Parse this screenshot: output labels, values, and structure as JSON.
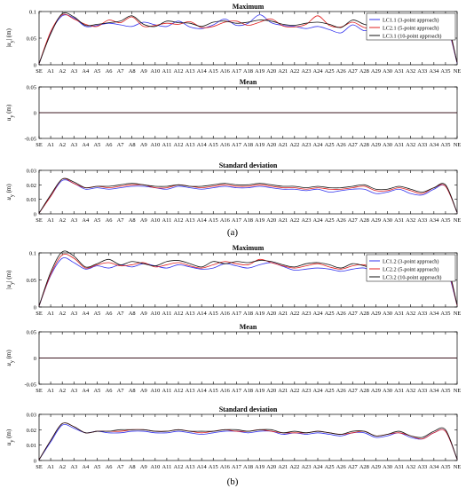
{
  "figure": {
    "panel_a_caption": "(a)",
    "panel_b_caption": "(b)",
    "series_colors": [
      "#3333ee",
      "#e02020",
      "#111111"
    ]
  },
  "chart_data": [
    {
      "type": "line",
      "panel": "a",
      "title": "Maximum",
      "ylabel": "|u_y| (m)",
      "categories": [
        "SE",
        "A1",
        "A2",
        "A3",
        "A4",
        "A5",
        "A6",
        "A7",
        "A8",
        "A9",
        "A10",
        "A11",
        "A12",
        "A13",
        "A14",
        "A15",
        "A16",
        "A17",
        "A18",
        "A19",
        "A20",
        "A21",
        "A22",
        "A23",
        "A24",
        "A25",
        "A26",
        "A27",
        "A28",
        "A29",
        "A30",
        "A31",
        "A32",
        "A33",
        "A34",
        "A35",
        "NE"
      ],
      "ylim": [
        0,
        0.1
      ],
      "yticks": [
        "0",
        "0.05",
        "0.1"
      ],
      "grid": false,
      "legend": "top-right",
      "series": [
        {
          "name": "LC1.1 (3-point approach)",
          "color": "#3333ee",
          "values": [
            0.002,
            0.06,
            0.092,
            0.088,
            0.072,
            0.074,
            0.078,
            0.075,
            0.072,
            0.08,
            0.075,
            0.072,
            0.082,
            0.071,
            0.068,
            0.075,
            0.086,
            0.074,
            0.078,
            0.094,
            0.079,
            0.074,
            0.072,
            0.068,
            0.072,
            0.066,
            0.06,
            0.075,
            0.064,
            0.07,
            0.075,
            0.066,
            0.072,
            0.061,
            0.072,
            0.08,
            0.003
          ]
        },
        {
          "name": "LC2.1 (5-point approach)",
          "color": "#e02020",
          "values": [
            0.002,
            0.062,
            0.094,
            0.086,
            0.076,
            0.072,
            0.084,
            0.079,
            0.09,
            0.072,
            0.074,
            0.078,
            0.076,
            0.081,
            0.07,
            0.072,
            0.08,
            0.082,
            0.074,
            0.08,
            0.086,
            0.073,
            0.071,
            0.076,
            0.092,
            0.074,
            0.071,
            0.08,
            0.07,
            0.068,
            0.082,
            0.068,
            0.074,
            0.066,
            0.078,
            0.084,
            0.004
          ]
        },
        {
          "name": "LC3.1 (10-point approach)",
          "color": "#111111",
          "values": [
            0.002,
            0.058,
            0.096,
            0.09,
            0.074,
            0.076,
            0.079,
            0.082,
            0.092,
            0.076,
            0.072,
            0.082,
            0.079,
            0.078,
            0.072,
            0.08,
            0.082,
            0.078,
            0.08,
            0.084,
            0.082,
            0.076,
            0.074,
            0.078,
            0.08,
            0.076,
            0.07,
            0.084,
            0.076,
            0.072,
            0.08,
            0.072,
            0.07,
            0.07,
            0.082,
            0.09,
            0.004
          ]
        }
      ]
    },
    {
      "type": "line",
      "panel": "a",
      "title": "Mean",
      "ylabel": "u_y (m)",
      "categories": [
        "SE",
        "A1",
        "A2",
        "A3",
        "A4",
        "A5",
        "A6",
        "A7",
        "A8",
        "A9",
        "A10",
        "A11",
        "A12",
        "A13",
        "A14",
        "A15",
        "A16",
        "A17",
        "A18",
        "A19",
        "A20",
        "A21",
        "A22",
        "A23",
        "A24",
        "A25",
        "A26",
        "A27",
        "A28",
        "A29",
        "A30",
        "A31",
        "A32",
        "A33",
        "A34",
        "A35",
        "NE"
      ],
      "ylim": [
        -0.05,
        0.05
      ],
      "yticks": [
        "-0.05",
        "0",
        "0.05"
      ],
      "grid": false,
      "series": [
        {
          "color": "#3333ee",
          "values": [
            0,
            0,
            0,
            0,
            0,
            0,
            0,
            0,
            0,
            0,
            0,
            0,
            0,
            0,
            0,
            0,
            0,
            0,
            0,
            0,
            0,
            0,
            0,
            0,
            0,
            0,
            0,
            0,
            0,
            0,
            0,
            0,
            0,
            0,
            0,
            0,
            0
          ]
        },
        {
          "color": "#e02020",
          "values": [
            0,
            0,
            0,
            0,
            0,
            0,
            0,
            0,
            0,
            0,
            0,
            0,
            0,
            0,
            0,
            0,
            0,
            0,
            0,
            0,
            0,
            0,
            0,
            0,
            0,
            0,
            0,
            0,
            0,
            0,
            0,
            0,
            0,
            0,
            0,
            0,
            0
          ]
        },
        {
          "color": "#111111",
          "values": [
            0,
            0,
            0,
            0,
            0,
            0,
            0,
            0,
            0,
            0,
            0,
            0,
            0,
            0,
            0,
            0,
            0,
            0,
            0,
            0,
            0,
            0,
            0,
            0,
            0,
            0,
            0,
            0,
            0,
            0,
            0,
            0,
            0,
            0,
            0,
            0,
            0
          ]
        }
      ]
    },
    {
      "type": "line",
      "panel": "a",
      "title": "Standard deviation",
      "ylabel": "u_y (m)",
      "categories": [
        "SE",
        "A1",
        "A2",
        "A3",
        "A4",
        "A5",
        "A6",
        "A7",
        "A8",
        "A9",
        "A10",
        "A11",
        "A12",
        "A13",
        "A14",
        "A15",
        "A16",
        "A17",
        "A18",
        "A19",
        "A20",
        "A21",
        "A22",
        "A23",
        "A24",
        "A25",
        "A26",
        "A27",
        "A28",
        "A29",
        "A30",
        "A31",
        "A32",
        "A33",
        "A34",
        "A35",
        "NE"
      ],
      "ylim": [
        0,
        0.03
      ],
      "yticks": [
        "0",
        "0.01",
        "0.02",
        "0.03"
      ],
      "grid": false,
      "series": [
        {
          "color": "#3333ee",
          "values": [
            0.0005,
            0.012,
            0.023,
            0.021,
            0.017,
            0.018,
            0.017,
            0.018,
            0.019,
            0.019,
            0.018,
            0.017,
            0.019,
            0.018,
            0.017,
            0.018,
            0.019,
            0.018,
            0.018,
            0.019,
            0.018,
            0.017,
            0.017,
            0.016,
            0.017,
            0.015,
            0.016,
            0.017,
            0.017,
            0.014,
            0.015,
            0.017,
            0.014,
            0.013,
            0.017,
            0.019,
            0.0008
          ]
        },
        {
          "color": "#e02020",
          "values": [
            0.0005,
            0.012,
            0.024,
            0.021,
            0.018,
            0.019,
            0.018,
            0.019,
            0.02,
            0.02,
            0.018,
            0.018,
            0.02,
            0.019,
            0.018,
            0.019,
            0.02,
            0.019,
            0.019,
            0.02,
            0.019,
            0.018,
            0.018,
            0.017,
            0.018,
            0.017,
            0.017,
            0.018,
            0.019,
            0.016,
            0.016,
            0.018,
            0.016,
            0.014,
            0.018,
            0.019,
            0.0008
          ]
        },
        {
          "color": "#111111",
          "values": [
            0.0005,
            0.013,
            0.024,
            0.022,
            0.018,
            0.019,
            0.019,
            0.02,
            0.021,
            0.02,
            0.019,
            0.019,
            0.02,
            0.019,
            0.019,
            0.02,
            0.021,
            0.02,
            0.02,
            0.021,
            0.02,
            0.019,
            0.019,
            0.018,
            0.019,
            0.018,
            0.018,
            0.019,
            0.02,
            0.017,
            0.017,
            0.019,
            0.017,
            0.015,
            0.018,
            0.02,
            0.0008
          ]
        }
      ]
    },
    {
      "type": "line",
      "panel": "b",
      "title": "Maximum",
      "ylabel": "|u_y| (m)",
      "categories": [
        "SE",
        "A1",
        "A2",
        "A3",
        "A4",
        "A5",
        "A6",
        "A7",
        "A8",
        "A9",
        "A10",
        "A11",
        "A12",
        "A13",
        "A14",
        "A15",
        "A16",
        "A17",
        "A18",
        "A19",
        "A20",
        "A21",
        "A22",
        "A23",
        "A24",
        "A25",
        "A26",
        "A27",
        "A28",
        "A29",
        "A30",
        "A31",
        "A32",
        "A33",
        "A34",
        "A35",
        "NE"
      ],
      "ylim": [
        0,
        0.1
      ],
      "yticks": [
        "0",
        "0.05",
        "0.1"
      ],
      "grid": false,
      "legend": "top-right",
      "series": [
        {
          "name": "LC1.2 (3-point approach)",
          "color": "#3333ee",
          "values": [
            0.002,
            0.058,
            0.09,
            0.082,
            0.07,
            0.076,
            0.072,
            0.078,
            0.074,
            0.08,
            0.076,
            0.072,
            0.078,
            0.074,
            0.07,
            0.072,
            0.08,
            0.076,
            0.072,
            0.078,
            0.082,
            0.075,
            0.068,
            0.07,
            0.072,
            0.07,
            0.066,
            0.07,
            0.072,
            0.064,
            0.068,
            0.07,
            0.064,
            0.06,
            0.072,
            0.076,
            0.003
          ]
        },
        {
          "name": "LC2.2 (5-point approach)",
          "color": "#e02020",
          "values": [
            0.002,
            0.06,
            0.096,
            0.09,
            0.072,
            0.078,
            0.082,
            0.076,
            0.078,
            0.082,
            0.074,
            0.078,
            0.082,
            0.076,
            0.072,
            0.078,
            0.084,
            0.08,
            0.078,
            0.088,
            0.082,
            0.076,
            0.072,
            0.076,
            0.08,
            0.074,
            0.07,
            0.076,
            0.078,
            0.07,
            0.074,
            0.076,
            0.07,
            0.066,
            0.078,
            0.082,
            0.003
          ]
        },
        {
          "name": "LC3.2 (10-point approach)",
          "color": "#111111",
          "values": [
            0.002,
            0.064,
            0.102,
            0.094,
            0.074,
            0.08,
            0.088,
            0.078,
            0.084,
            0.08,
            0.076,
            0.084,
            0.086,
            0.08,
            0.074,
            0.084,
            0.08,
            0.084,
            0.082,
            0.086,
            0.084,
            0.078,
            0.074,
            0.08,
            0.082,
            0.078,
            0.072,
            0.08,
            0.076,
            0.07,
            0.078,
            0.072,
            0.068,
            0.064,
            0.08,
            0.088,
            0.004
          ]
        }
      ]
    },
    {
      "type": "line",
      "panel": "b",
      "title": "Mean",
      "ylabel": "u_y (m)",
      "categories": [
        "SE",
        "A1",
        "A2",
        "A3",
        "A4",
        "A5",
        "A6",
        "A7",
        "A8",
        "A9",
        "A10",
        "A11",
        "A12",
        "A13",
        "A14",
        "A15",
        "A16",
        "A17",
        "A18",
        "A19",
        "A20",
        "A21",
        "A22",
        "A23",
        "A24",
        "A25",
        "A26",
        "A27",
        "A28",
        "A29",
        "A30",
        "A31",
        "A32",
        "A33",
        "A34",
        "A35",
        "NE"
      ],
      "ylim": [
        -0.05,
        0.05
      ],
      "yticks": [
        "-0.05",
        "0",
        "0.05"
      ],
      "grid": false,
      "series": [
        {
          "color": "#3333ee",
          "values": [
            0,
            0,
            0,
            0,
            0,
            0,
            0,
            0,
            0,
            0,
            0,
            0,
            0,
            0,
            0,
            0,
            0,
            0,
            0,
            0,
            0,
            0,
            0,
            0,
            0,
            0,
            0,
            0,
            0,
            0,
            0,
            0,
            0,
            0,
            0,
            0,
            0
          ]
        },
        {
          "color": "#e02020",
          "values": [
            0,
            0,
            0,
            0,
            0,
            0,
            0,
            0,
            0,
            0,
            0,
            0,
            0,
            0,
            0,
            0,
            0,
            0,
            0,
            0,
            0,
            0,
            0,
            0,
            0,
            0,
            0,
            0,
            0,
            0,
            0,
            0,
            0,
            0,
            0,
            0,
            0
          ]
        },
        {
          "color": "#111111",
          "values": [
            0,
            0,
            0,
            0,
            0,
            0,
            0,
            0,
            0,
            0,
            0,
            0,
            0,
            0,
            0,
            0,
            0,
            0,
            0,
            0,
            0,
            0,
            0,
            0,
            0,
            0,
            0,
            0,
            0,
            0,
            0,
            0,
            0,
            0,
            0,
            0,
            0
          ]
        }
      ]
    },
    {
      "type": "line",
      "panel": "b",
      "title": "Standard deviation",
      "ylabel": "u_y (m)",
      "categories": [
        "SE",
        "A1",
        "A2",
        "A3",
        "A4",
        "A5",
        "A6",
        "A7",
        "A8",
        "A9",
        "A10",
        "A11",
        "A12",
        "A13",
        "A14",
        "A15",
        "A16",
        "A17",
        "A18",
        "A19",
        "A20",
        "A21",
        "A22",
        "A23",
        "A24",
        "A25",
        "A26",
        "A27",
        "A28",
        "A29",
        "A30",
        "A31",
        "A32",
        "A33",
        "A34",
        "A35",
        "NE"
      ],
      "ylim": [
        0,
        0.03
      ],
      "yticks": [
        "0",
        "0.01",
        "0.02",
        "0.03"
      ],
      "grid": false,
      "series": [
        {
          "color": "#3333ee",
          "values": [
            0.0005,
            0.012,
            0.023,
            0.021,
            0.018,
            0.019,
            0.018,
            0.018,
            0.019,
            0.019,
            0.018,
            0.018,
            0.019,
            0.018,
            0.017,
            0.018,
            0.019,
            0.019,
            0.018,
            0.019,
            0.019,
            0.017,
            0.018,
            0.017,
            0.018,
            0.017,
            0.016,
            0.018,
            0.018,
            0.015,
            0.016,
            0.018,
            0.015,
            0.014,
            0.018,
            0.019,
            0.0008
          ]
        },
        {
          "color": "#e02020",
          "values": [
            0.0005,
            0.013,
            0.024,
            0.022,
            0.018,
            0.019,
            0.019,
            0.019,
            0.02,
            0.02,
            0.019,
            0.019,
            0.02,
            0.019,
            0.018,
            0.019,
            0.02,
            0.019,
            0.019,
            0.02,
            0.019,
            0.018,
            0.018,
            0.018,
            0.019,
            0.018,
            0.017,
            0.018,
            0.019,
            0.016,
            0.017,
            0.018,
            0.016,
            0.014,
            0.018,
            0.019,
            0.0008
          ]
        },
        {
          "color": "#111111",
          "values": [
            0.0005,
            0.013,
            0.024,
            0.022,
            0.018,
            0.019,
            0.019,
            0.02,
            0.02,
            0.02,
            0.019,
            0.019,
            0.02,
            0.019,
            0.019,
            0.019,
            0.02,
            0.02,
            0.019,
            0.02,
            0.02,
            0.018,
            0.019,
            0.018,
            0.019,
            0.018,
            0.017,
            0.019,
            0.019,
            0.016,
            0.017,
            0.019,
            0.016,
            0.015,
            0.019,
            0.02,
            0.0008
          ]
        }
      ]
    }
  ]
}
